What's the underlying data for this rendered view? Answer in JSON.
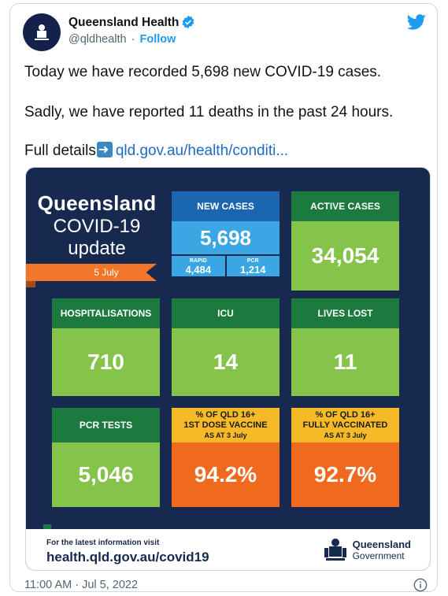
{
  "account": {
    "name": "Queensland Health",
    "handle": "@qldhealth",
    "separator": "·",
    "follow_label": "Follow",
    "avatar_text": "Queensland Government"
  },
  "tweet": {
    "line1": "Today we have recorded 5,698 new COVID-19 cases.",
    "line2": "Sadly, we have reported 11 deaths in the past 24 hours.",
    "line3_prefix": "Full details",
    "line3_link": "qld.gov.au/health/conditi...",
    "timestamp": "11:00 AM · Jul 5, 2022"
  },
  "infographic": {
    "title_line1": "Queensland",
    "title_line2": "COVID-19",
    "title_line3": "update",
    "date": "5 July",
    "new_cases": {
      "label": "NEW CASES",
      "value": "5,698",
      "rapid_label": "RAPID",
      "rapid_value": "4,484",
      "pcr_label": "PCR",
      "pcr_value": "1,214"
    },
    "active_cases": {
      "label": "ACTIVE CASES",
      "value": "34,054"
    },
    "hospitalisations": {
      "label": "HOSPITALISATIONS",
      "value": "710"
    },
    "icu": {
      "label": "ICU",
      "value": "14"
    },
    "lives_lost": {
      "label": "LIVES LOST",
      "value": "11"
    },
    "pcr_tests": {
      "label": "PCR TESTS",
      "value": "5,046"
    },
    "first_dose": {
      "label_line1": "% OF QLD 16+",
      "label_line2": "1ST DOSE VACCINE",
      "label_line3": "AS AT 3 July",
      "value": "94.2%"
    },
    "fully_vaccinated": {
      "label_line1": "% OF QLD 16+",
      "label_line2": "FULLY VACCINATED",
      "label_line3": "AS AT 3 July",
      "value": "92.7%"
    },
    "footer_line1": "For the latest information visit",
    "footer_line2": "health.qld.gov.au/covid19",
    "gov_line1": "Queensland",
    "gov_line2": "Government"
  },
  "colors": {
    "navy": "#17294f",
    "green_dark": "#1c7a3e",
    "green_light": "#86c34a",
    "blue_dark": "#1a66b1",
    "blue_light": "#3aa6e3",
    "orange": "#ef6a1f",
    "yellow": "#f6b928",
    "twitter_blue": "#1d9bf0"
  }
}
